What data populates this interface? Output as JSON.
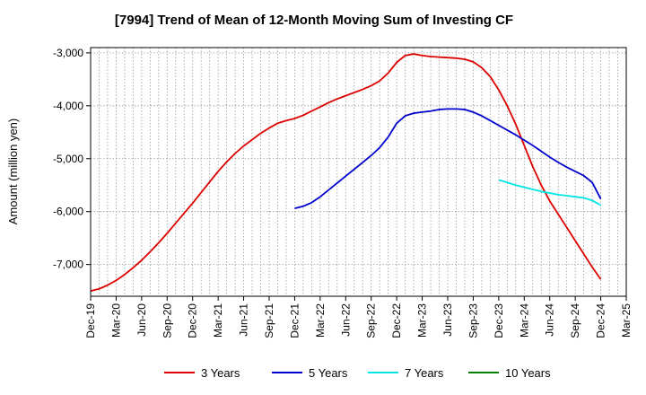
{
  "chart_data": {
    "type": "line",
    "title": "[7994]  Trend of Mean of 12-Month Moving Sum of Investing CF",
    "xlabel": "",
    "ylabel": "Amount (million yen)",
    "ylim": [
      -7600,
      -2900
    ],
    "yticks": [
      -7000,
      -6000,
      -5000,
      -4000,
      -3000
    ],
    "ytick_labels": [
      "-7,000",
      "-6,000",
      "-5,000",
      "-4,000",
      "-3,000"
    ],
    "x_range": [
      0,
      63
    ],
    "x_ticks": [
      0,
      3,
      6,
      9,
      12,
      15,
      18,
      21,
      24,
      27,
      30,
      33,
      36,
      39,
      42,
      45,
      48,
      51,
      54,
      57,
      60,
      63
    ],
    "x_tick_labels": [
      "Dec-19",
      "Mar-20",
      "Jun-20",
      "Sep-20",
      "Dec-20",
      "Mar-21",
      "Jun-21",
      "Sep-21",
      "Dec-21",
      "Mar-22",
      "Jun-22",
      "Sep-22",
      "Dec-22",
      "Mar-23",
      "Jun-23",
      "Sep-23",
      "Dec-23",
      "Mar-24",
      "Jun-24",
      "Sep-24",
      "Dec-24",
      "Mar-25"
    ],
    "series": [
      {
        "name": "3 Years",
        "color": "#dd0000",
        "x": [
          0,
          1,
          2,
          3,
          4,
          5,
          6,
          7,
          8,
          9,
          10,
          11,
          12,
          13,
          14,
          15,
          16,
          17,
          18,
          19,
          20,
          21,
          22,
          23,
          24,
          25,
          26,
          27,
          28,
          29,
          30,
          31,
          32,
          33,
          34,
          35,
          36,
          37,
          38,
          39,
          40,
          41,
          42,
          43,
          44,
          45,
          46,
          47,
          48,
          49,
          50,
          51,
          52,
          53,
          54,
          55,
          56,
          57,
          58,
          59,
          60
        ],
        "values": [
          -7500,
          -7460,
          -7390,
          -7300,
          -7190,
          -7060,
          -6920,
          -6760,
          -6590,
          -6410,
          -6220,
          -6030,
          -5840,
          -5640,
          -5440,
          -5240,
          -5060,
          -4900,
          -4760,
          -4640,
          -4520,
          -4420,
          -4330,
          -4280,
          -4240,
          -4180,
          -4100,
          -4020,
          -3940,
          -3870,
          -3810,
          -3750,
          -3690,
          -3620,
          -3530,
          -3380,
          -3180,
          -3050,
          -3020,
          -3050,
          -3070,
          -3080,
          -3090,
          -3100,
          -3120,
          -3170,
          -3280,
          -3450,
          -3700,
          -4000,
          -4350,
          -4750,
          -5150,
          -5500,
          -5800,
          -6050,
          -6300,
          -6550,
          -6800,
          -7050,
          -7280
        ]
      },
      {
        "name": "5 Years",
        "color": "#0000cc",
        "x": [
          24,
          25,
          26,
          27,
          28,
          29,
          30,
          31,
          32,
          33,
          34,
          35,
          36,
          37,
          38,
          39,
          40,
          41,
          42,
          43,
          44,
          45,
          46,
          47,
          48,
          49,
          50,
          51,
          52,
          53,
          54,
          55,
          56,
          57,
          58,
          59,
          60
        ],
        "values": [
          -5940,
          -5900,
          -5830,
          -5720,
          -5590,
          -5460,
          -5330,
          -5200,
          -5070,
          -4940,
          -4790,
          -4590,
          -4330,
          -4190,
          -4140,
          -4120,
          -4100,
          -4070,
          -4060,
          -4060,
          -4070,
          -4120,
          -4190,
          -4280,
          -4370,
          -4460,
          -4550,
          -4650,
          -4750,
          -4860,
          -4970,
          -5070,
          -5160,
          -5240,
          -5320,
          -5450,
          -5760
        ]
      },
      {
        "name": "7 Years",
        "color": "#00e5e5",
        "x": [
          48,
          49,
          50,
          51,
          52,
          53,
          54,
          55,
          56,
          57,
          58,
          59,
          60
        ],
        "values": [
          -5400,
          -5450,
          -5500,
          -5540,
          -5580,
          -5620,
          -5650,
          -5680,
          -5700,
          -5720,
          -5740,
          -5790,
          -5880
        ]
      },
      {
        "name": "10 Years",
        "color": "#008000",
        "x": [],
        "values": []
      }
    ],
    "legend_position": "bottom",
    "grid": true
  }
}
